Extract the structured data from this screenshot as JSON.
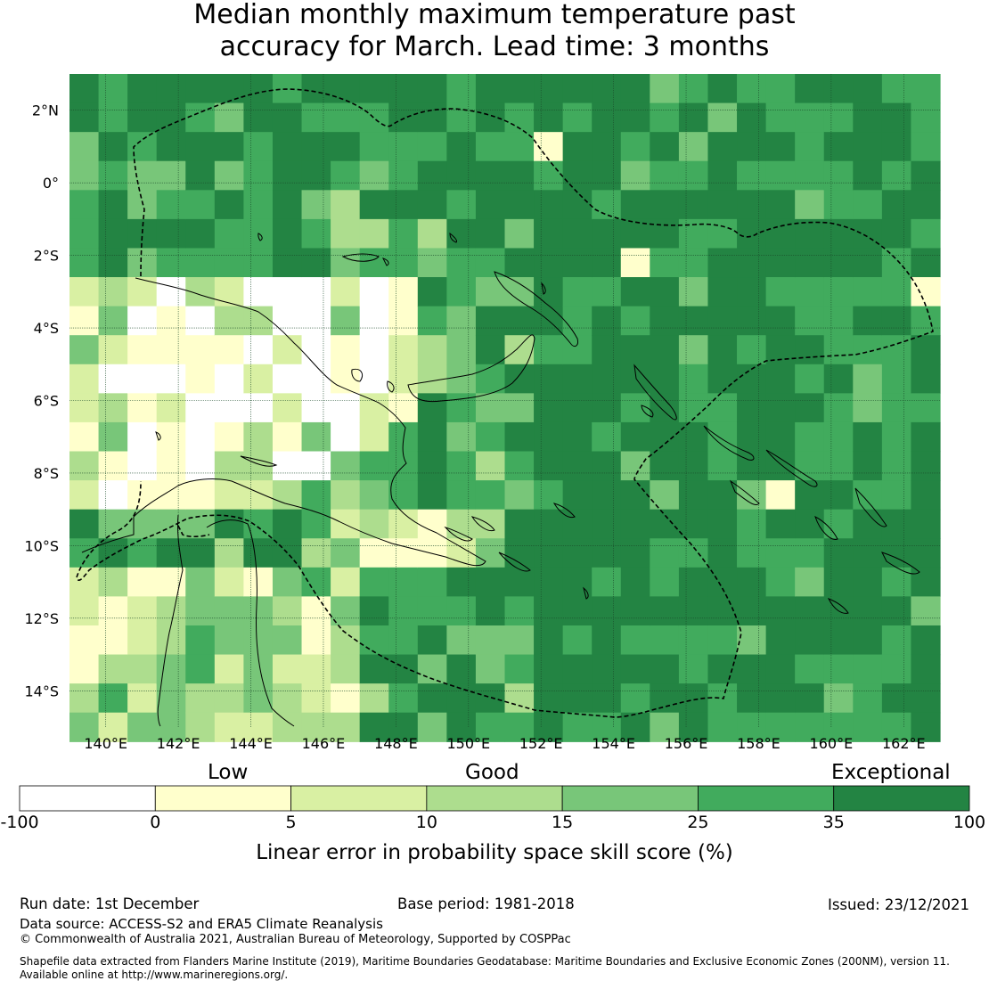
{
  "title": {
    "line1": "Median monthly maximum temperature past",
    "line2": "accuracy for March. Lead time: 3 months"
  },
  "map": {
    "lon_ticks": [
      "140°E",
      "142°E",
      "144°E",
      "146°E",
      "148°E",
      "150°E",
      "152°E",
      "154°E",
      "156°E",
      "158°E",
      "160°E",
      "162°E"
    ],
    "lat_ticks": [
      "2°N",
      "0°",
      "2°S",
      "4°S",
      "6°S",
      "8°S",
      "10°S",
      "12°S",
      "14°S"
    ]
  },
  "colorbar": {
    "category_labels": [
      "Low",
      "Good",
      "Exceptional"
    ],
    "boundaries": [
      "-100",
      "0",
      "5",
      "10",
      "15",
      "25",
      "35",
      "100"
    ],
    "colors": [
      "#ffffff",
      "#ffffcc",
      "#d9f0a3",
      "#addd8e",
      "#78c679",
      "#41ab5d",
      "#238443"
    ],
    "label": "Linear error in probability space skill score (%)"
  },
  "footer": {
    "run_date": "Run date: 1st December",
    "base_period": "Base period: 1981-2018",
    "issued": "Issued: 23/12/2021",
    "data_source": "Data source: ACCESS-S2 and ERA5 Climate Reanalysis",
    "copyright": "© Commonwealth of Australia 2021, Australian Bureau of Meteorology, Supported by COSPPac",
    "shapefile_line1": "Shapefile data extracted from Flanders Marine Institute (2019), Maritime Boundaries Geodatabase: Maritime Boundaries and Exclusive Economic Zones (200NM), version 11.",
    "shapefile_line2": "Available online at http://www.marineregions.org/."
  }
}
